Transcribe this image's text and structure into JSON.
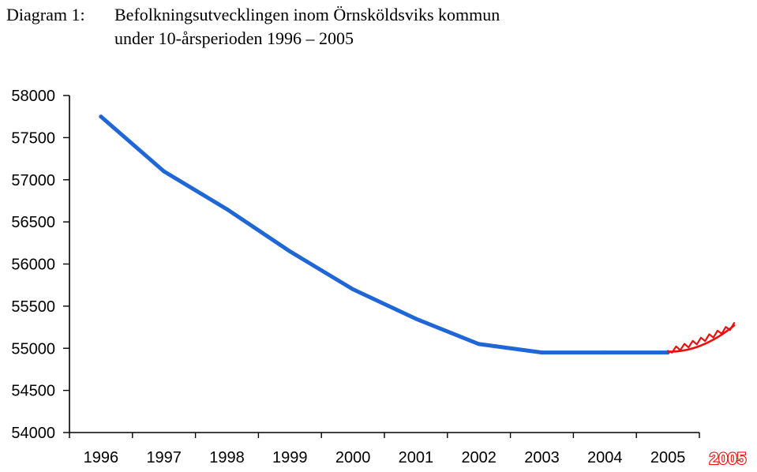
{
  "title": {
    "label": "Diagram 1:",
    "line1": "Befolkningsutvecklingen inom Örnsköldsviks kommun",
    "line2": "under 10-årsperioden 1996 – 2005"
  },
  "colors": {
    "series": "#1f66d6",
    "annotation": "#e8110f",
    "axis": "#000000"
  },
  "chart_data": {
    "type": "line",
    "title": "Diagram 1: Befolkningsutvecklingen inom Örnsköldsviks kommun under 10-årsperioden 1996 – 2005",
    "xlabel": "",
    "ylabel": "",
    "categories": [
      "1996",
      "1997",
      "1998",
      "1999",
      "2000",
      "2001",
      "2002",
      "2003",
      "2004",
      "2005"
    ],
    "series": [
      {
        "values": [
          57750,
          57100,
          56650,
          56150,
          55700,
          55350,
          55050,
          54950,
          54950,
          54950
        ]
      }
    ],
    "ylim": [
      54000,
      58000
    ],
    "yticks": [
      54000,
      54500,
      55000,
      55500,
      56000,
      56500,
      57000,
      57500,
      58000
    ],
    "grid": false,
    "legend": "none",
    "annotation": {
      "label": "2005",
      "trend_from": 54970,
      "trend_to": 55270,
      "style": "hand-drawn red"
    }
  }
}
